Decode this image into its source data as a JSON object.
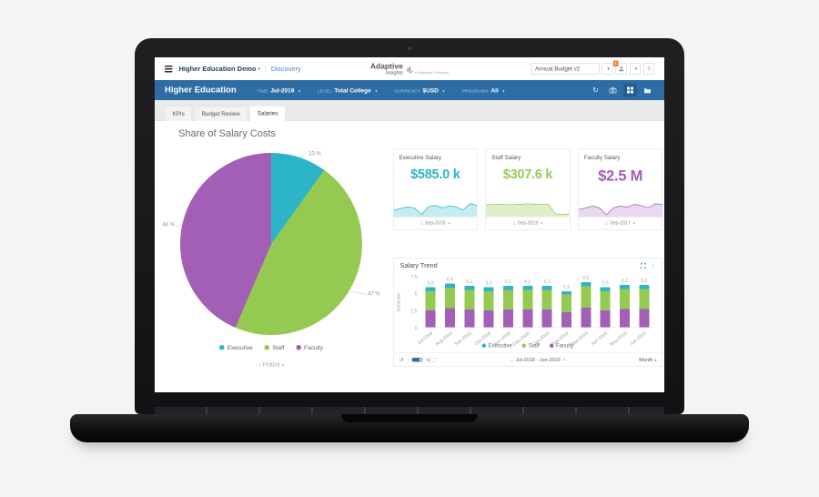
{
  "colors": {
    "executive": "#2cb5c8",
    "staff": "#95ca52",
    "faculty": "#a35eb5",
    "navbar": "#2e6da4",
    "navbar_active": "#235d93",
    "link": "#3f88c5",
    "badge": "#f47b20",
    "value_arrow": "#2f78c2"
  },
  "header": {
    "menu_label": "Higher Education Demo",
    "nav_link": "Discovery",
    "logo_primary": "Adaptive",
    "logo_secondary": "Insights",
    "logo_tagline": "a Workday Company",
    "version_select": "Annual Budget v2",
    "notification_count": "1",
    "help_label": "?"
  },
  "toolbar": {
    "title": "Higher Education",
    "filters": [
      {
        "label": "TIME",
        "value": "Jul-2019"
      },
      {
        "label": "LEVEL",
        "value": "Total College"
      },
      {
        "label": "CURRENCY",
        "value": "$USD"
      },
      {
        "label": "PROGRAMS",
        "value": "All"
      }
    ]
  },
  "tabs": [
    {
      "label": "KPIs"
    },
    {
      "label": "Budget Review"
    },
    {
      "label": "Salaries"
    }
  ],
  "main": {
    "title": "Share of Salary Costs",
    "pie_period": "FY2019"
  },
  "kpi_cards": [
    {
      "title": "Executive Salary",
      "value": "$585.0 k",
      "period": "Sep-2018"
    },
    {
      "title": "Staff Salary",
      "value": "$307.6 k",
      "period": "Sep-2019"
    },
    {
      "title": "Faculty Salary",
      "value": "$2.5 M",
      "period": "Sep-2017"
    }
  ],
  "trend": {
    "title": "Salary Trend",
    "period": "Jul-2018 - Jun-2019",
    "granularity": "Month"
  },
  "chart_data": [
    {
      "id": "salary-share-pie",
      "type": "pie",
      "title": "Share of Salary Costs",
      "labels": [
        "Executive",
        "Staff",
        "Faculty"
      ],
      "values": [
        10,
        47,
        44
      ],
      "unit": "%",
      "value_labels": [
        "10 %",
        "47 %",
        "44 %"
      ],
      "colors": [
        "#2cb5c8",
        "#95ca52",
        "#a35eb5"
      ],
      "legend_position": "bottom",
      "period": "FY2019"
    },
    {
      "id": "executive-salary-sparkline",
      "type": "area",
      "name": "Executive Salary",
      "values": [
        575,
        580,
        585,
        582,
        560,
        585,
        590,
        582,
        588,
        585,
        575,
        595,
        590
      ],
      "color": "#2cb5c8",
      "fill": "#c6ebf1"
    },
    {
      "id": "staff-salary-sparkline",
      "type": "area",
      "name": "Staff Salary",
      "values": [
        310,
        311,
        312,
        311,
        310,
        312,
        315,
        313,
        312,
        311,
        262,
        258,
        263
      ],
      "color": "#95ca52",
      "fill": "#e0efcb"
    },
    {
      "id": "faculty-salary-sparkline",
      "type": "area",
      "name": "Faculty Salary",
      "values": [
        2.45,
        2.5,
        2.55,
        2.5,
        2.3,
        2.5,
        2.55,
        2.52,
        2.6,
        2.57,
        2.5,
        2.62,
        2.6
      ],
      "color": "#a35eb5",
      "fill": "#e9d8ef"
    },
    {
      "id": "salary-trend",
      "type": "bar",
      "stacked": true,
      "title": "Salary Trend",
      "categories": [
        "Jul-2018",
        "Aug-2018",
        "Sep-2018",
        "Oct-2018",
        "Nov-2018",
        "Dec-2018",
        "Jan-2019",
        "Feb-2019",
        "Mar-2019",
        "Apr-2019",
        "May-2019",
        "Jun-2019"
      ],
      "series": [
        {
          "name": "Executive",
          "color": "#2cb5c8",
          "values": [
            0.6,
            0.6,
            0.6,
            0.6,
            0.6,
            0.6,
            0.6,
            0.5,
            0.6,
            0.6,
            0.6,
            0.6
          ]
        },
        {
          "name": "Staff",
          "color": "#95ca52",
          "values": [
            2.8,
            3.0,
            2.9,
            2.8,
            2.9,
            2.9,
            2.9,
            2.6,
            3.1,
            2.8,
            2.9,
            2.9
          ]
        },
        {
          "name": "Faculty",
          "color": "#a35eb5",
          "values": [
            2.5,
            2.8,
            2.6,
            2.5,
            2.6,
            2.6,
            2.6,
            2.2,
            2.9,
            2.5,
            2.7,
            2.7
          ]
        }
      ],
      "totals": [
        "5.9",
        "6.4",
        "6.1",
        "5.9",
        "6.1",
        "6.1",
        "6.1",
        "5.3",
        "6.6",
        "5.9",
        "6.2",
        "6.2"
      ],
      "ylabel": "$,000,000",
      "yticks": [
        0,
        2.5,
        5,
        7.5
      ],
      "ylim": [
        0,
        7.5
      ],
      "legend_position": "bottom",
      "period": "Jul-2018 - Jun-2019",
      "granularity": "Month"
    }
  ]
}
